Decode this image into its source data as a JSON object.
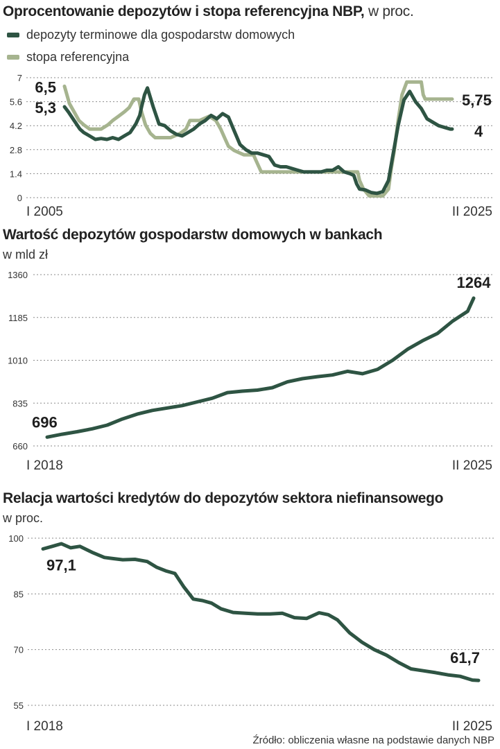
{
  "chart1": {
    "title_bold": "Oprocentowanie depozytów i stopa referencyjna NBP,",
    "title_light": " w proc.",
    "legend": [
      {
        "label": "depozyty terminowe dla gospodarstw domowych",
        "color": "#2e5443"
      },
      {
        "label": "stopa referencyjna",
        "color": "#a6b48f"
      }
    ]
  },
  "chart2": {
    "title": "Wartość depozytów gospodarstw domowych w bankach",
    "subtitle": "w mld zł"
  },
  "chart3": {
    "title": "Relacja wartości kredytów do depozytów sektora niefinansowego",
    "subtitle": "w proc."
  },
  "source": "Źródło: obliczenia własne na podstawie danych NBP",
  "chart_data": [
    {
      "type": "line",
      "title": "Oprocentowanie depozytów i stopa referencyjna NBP, w proc.",
      "x_start_label": "I 2005",
      "x_end_label": "II 2025",
      "x_range": [
        2005.0,
        2025.1
      ],
      "yticks": [
        "0",
        "1.4",
        "2.8",
        "4.2",
        "5.6",
        "7"
      ],
      "ylim": [
        0,
        7
      ],
      "series": [
        {
          "name": "depozyty terminowe dla gospodarstw domowych",
          "color": "#2e5443",
          "x": [
            2005.0,
            2005.2,
            2005.5,
            2005.8,
            2006.0,
            2006.3,
            2006.6,
            2006.9,
            2007.2,
            2007.5,
            2007.8,
            2008.1,
            2008.4,
            2008.7,
            2008.9,
            2009.0,
            2009.15,
            2009.3,
            2009.6,
            2009.9,
            2010.2,
            2010.5,
            2010.8,
            2011.1,
            2011.4,
            2011.7,
            2012.0,
            2012.3,
            2012.6,
            2012.9,
            2013.2,
            2013.5,
            2013.8,
            2014.1,
            2014.4,
            2014.7,
            2015.0,
            2015.3,
            2015.6,
            2015.9,
            2016.2,
            2016.5,
            2016.8,
            2017.1,
            2017.4,
            2017.7,
            2018.0,
            2018.3,
            2018.6,
            2018.9,
            2019.2,
            2019.5,
            2019.8,
            2020.0,
            2020.15,
            2020.3,
            2020.6,
            2020.9,
            2021.2,
            2021.5,
            2021.8,
            2022.0,
            2022.3,
            2022.6,
            2022.9,
            2023.2,
            2023.5,
            2023.8,
            2024.1,
            2024.4,
            2024.7,
            2025.0,
            2025.1
          ],
          "values": [
            5.3,
            5.0,
            4.5,
            4.0,
            3.8,
            3.6,
            3.4,
            3.45,
            3.4,
            3.5,
            3.4,
            3.6,
            3.8,
            4.3,
            4.8,
            5.3,
            6.0,
            6.4,
            5.3,
            4.3,
            4.2,
            3.9,
            3.7,
            3.6,
            3.8,
            4.0,
            4.3,
            4.5,
            4.8,
            4.6,
            4.9,
            4.7,
            3.9,
            3.1,
            2.8,
            2.6,
            2.6,
            2.5,
            2.4,
            1.9,
            1.8,
            1.8,
            1.7,
            1.6,
            1.5,
            1.5,
            1.5,
            1.5,
            1.6,
            1.6,
            1.8,
            1.5,
            1.4,
            1.3,
            0.8,
            0.5,
            0.45,
            0.3,
            0.25,
            0.35,
            1.0,
            2.3,
            4.2,
            5.7,
            6.2,
            5.6,
            5.2,
            4.6,
            4.4,
            4.2,
            4.1,
            4.0,
            4.0
          ]
        },
        {
          "name": "stopa referencyjna",
          "color": "#a6b48f",
          "x": [
            2005.0,
            2005.25,
            2005.5,
            2005.75,
            2006.0,
            2006.3,
            2006.6,
            2006.9,
            2007.25,
            2007.5,
            2007.8,
            2008.1,
            2008.35,
            2008.6,
            2008.85,
            2009.0,
            2009.2,
            2009.45,
            2009.7,
            2010.0,
            2010.5,
            2011.0,
            2011.3,
            2011.5,
            2011.8,
            2012.0,
            2012.5,
            2012.85,
            2013.1,
            2013.3,
            2013.5,
            2013.8,
            2014.3,
            2014.8,
            2015.0,
            2015.2,
            2016.0,
            2017.0,
            2018.0,
            2019.0,
            2019.9,
            2020.2,
            2020.3,
            2020.5,
            2020.8,
            2021.0,
            2021.5,
            2021.8,
            2021.95,
            2022.1,
            2022.3,
            2022.5,
            2022.75,
            2023.0,
            2023.3,
            2023.5,
            2023.6,
            2023.7,
            2023.9,
            2024.2,
            2024.6,
            2025.0,
            2025.1
          ],
          "values": [
            6.5,
            5.5,
            5.0,
            4.5,
            4.25,
            4.0,
            4.0,
            4.0,
            4.25,
            4.5,
            4.75,
            5.0,
            5.25,
            5.75,
            5.75,
            5.0,
            4.25,
            3.75,
            3.5,
            3.5,
            3.5,
            3.75,
            4.0,
            4.5,
            4.5,
            4.5,
            4.75,
            4.5,
            4.0,
            3.5,
            3.0,
            2.75,
            2.5,
            2.5,
            2.0,
            1.5,
            1.5,
            1.5,
            1.5,
            1.5,
            1.5,
            1.5,
            1.0,
            0.5,
            0.1,
            0.1,
            0.1,
            0.5,
            1.75,
            2.75,
            4.5,
            6.0,
            6.75,
            6.75,
            6.75,
            6.75,
            6.0,
            5.75,
            5.75,
            5.75,
            5.75,
            5.75,
            5.75
          ]
        }
      ],
      "annotations": [
        {
          "label": "6,5",
          "value": 6.5
        },
        {
          "label": "5,3",
          "value": 5.3
        },
        {
          "label": "5,75",
          "value": 5.75
        },
        {
          "label": "4",
          "value": 4.0
        }
      ]
    },
    {
      "type": "line",
      "title": "Wartość depozytów gospodarstw domowych w bankach",
      "ylabel": "w mld zł",
      "x_start_label": "I 2018",
      "x_end_label": "II 2025",
      "x_range": [
        2018.0,
        2025.1
      ],
      "yticks": [
        "660",
        "835",
        "1010",
        "1185",
        "1360"
      ],
      "ylim": [
        660,
        1360
      ],
      "series": [
        {
          "name": "Wartość depozytów",
          "color": "#2e5443",
          "x": [
            2018.0,
            2018.25,
            2018.5,
            2018.75,
            2019.0,
            2019.25,
            2019.5,
            2019.75,
            2020.0,
            2020.25,
            2020.5,
            2020.75,
            2021.0,
            2021.25,
            2021.5,
            2021.75,
            2022.0,
            2022.25,
            2022.5,
            2022.75,
            2023.0,
            2023.25,
            2023.5,
            2023.75,
            2024.0,
            2024.25,
            2024.5,
            2024.75,
            2025.0,
            2025.1
          ],
          "values": [
            696,
            708,
            718,
            730,
            745,
            770,
            790,
            805,
            815,
            825,
            840,
            855,
            878,
            884,
            888,
            898,
            922,
            935,
            943,
            950,
            965,
            955,
            973,
            1010,
            1055,
            1090,
            1120,
            1170,
            1210,
            1264
          ]
        }
      ],
      "annotations": [
        {
          "label": "696",
          "value": 696
        },
        {
          "label": "1264",
          "value": 1264
        }
      ]
    },
    {
      "type": "line",
      "title": "Relacja wartości kredytów do depozytów sektora niefinansowego",
      "ylabel": "w proc.",
      "x_start_label": "I 2018",
      "x_end_label": "II 2025",
      "x_range": [
        2018.0,
        2025.1
      ],
      "yticks": [
        "55",
        "70",
        "85",
        "100"
      ],
      "ylim": [
        55,
        100
      ],
      "series": [
        {
          "name": "Relacja kredytów do depozytów",
          "color": "#2e5443",
          "x": [
            2018.0,
            2018.15,
            2018.3,
            2018.45,
            2018.6,
            2018.8,
            2019.0,
            2019.15,
            2019.3,
            2019.5,
            2019.7,
            2019.85,
            2020.0,
            2020.15,
            2020.3,
            2020.45,
            2020.6,
            2020.75,
            2020.9,
            2021.1,
            2021.3,
            2021.5,
            2021.7,
            2021.9,
            2022.1,
            2022.3,
            2022.5,
            2022.65,
            2022.8,
            2023.0,
            2023.2,
            2023.4,
            2023.6,
            2023.8,
            2024.0,
            2024.2,
            2024.4,
            2024.6,
            2024.8,
            2025.0,
            2025.1
          ],
          "values": [
            97.1,
            97.8,
            98.5,
            97.4,
            97.8,
            96.2,
            94.8,
            94.5,
            94.2,
            94.3,
            93.7,
            92.2,
            91.2,
            90.5,
            86.8,
            83.6,
            83.2,
            82.5,
            81.0,
            80.0,
            79.8,
            79.6,
            79.6,
            79.8,
            78.6,
            78.4,
            79.9,
            79.4,
            78.0,
            74.5,
            72.0,
            70.0,
            68.5,
            66.5,
            64.8,
            64.3,
            63.8,
            63.2,
            62.8,
            61.8,
            61.7
          ]
        }
      ],
      "annotations": [
        {
          "label": "97,1",
          "value": 97.1
        },
        {
          "label": "61,7",
          "value": 61.7
        }
      ]
    }
  ]
}
